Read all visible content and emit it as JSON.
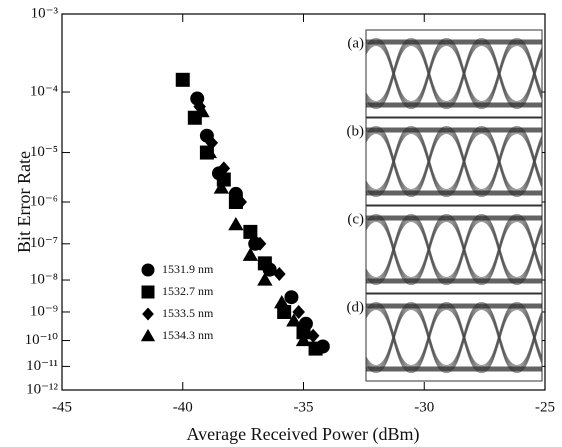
{
  "chart_data": {
    "type": "scatter",
    "xlabel": "Average Received Power (dBm)",
    "ylabel": "Bit Error Rate",
    "xlim": [
      -45,
      -25
    ],
    "xticks": [
      -45,
      -40,
      -35,
      -30,
      -25
    ],
    "ylim": [
      0.001,
      1e-12
    ],
    "yscale": "ber",
    "yticks": [
      {
        "value": 0.001,
        "label": "10⁻³"
      },
      {
        "value": 0.0001,
        "label": "10⁻⁴"
      },
      {
        "value": 1e-05,
        "label": "10⁻⁵"
      },
      {
        "value": 1e-06,
        "label": "10⁻⁶"
      },
      {
        "value": 1e-07,
        "label": "10⁻⁷"
      },
      {
        "value": 1e-08,
        "label": "10⁻⁸"
      },
      {
        "value": 1e-09,
        "label": "10⁻⁹"
      },
      {
        "value": 1e-10,
        "label": "10⁻¹⁰"
      },
      {
        "value": 1e-11,
        "label": "10⁻¹¹"
      },
      {
        "value": 1e-12,
        "label": "10⁻¹²"
      }
    ],
    "legend": "lower left",
    "series": [
      {
        "name": "1531.9 nm",
        "color": "#000000",
        "marker": "circle",
        "x": [
          -39.4,
          -39.0,
          -38.5,
          -37.8,
          -37.0,
          -36.4,
          -35.5,
          -34.9,
          -34.2
        ],
        "values": [
          8e-05,
          2e-05,
          4e-06,
          1.5e-06,
          1e-07,
          2e-08,
          3e-09,
          4e-10,
          6e-11
        ]
      },
      {
        "name": "1532.7 nm",
        "color": "#000000",
        "marker": "square",
        "x": [
          -40.0,
          -39.5,
          -39.0,
          -38.3,
          -37.8,
          -37.2,
          -36.6,
          -35.8,
          -35.0,
          -34.5
        ],
        "values": [
          0.00015,
          4e-05,
          1e-05,
          3e-06,
          1e-06,
          2e-07,
          3e-08,
          1e-09,
          2e-10,
          5e-11
        ]
      },
      {
        "name": "1533.5 nm",
        "color": "#000000",
        "marker": "diamond",
        "x": [
          -39.3,
          -38.8,
          -38.3,
          -37.6,
          -36.8,
          -36.0,
          -35.2,
          -34.6
        ],
        "values": [
          6e-05,
          1.5e-05,
          5e-06,
          1e-06,
          1e-07,
          1.5e-08,
          1e-09,
          1.5e-10
        ]
      },
      {
        "name": "1534.3 nm",
        "color": "#000000",
        "marker": "triangle",
        "x": [
          -39.2,
          -38.9,
          -38.4,
          -37.8,
          -37.2,
          -36.6,
          -35.9,
          -35.4,
          -35.0
        ],
        "values": [
          5e-05,
          1e-05,
          2e-06,
          3e-07,
          5e-08,
          1e-08,
          2e-09,
          5e-10,
          1e-10
        ]
      }
    ],
    "insets": [
      "(a)",
      "(b)",
      "(c)",
      "(d)"
    ]
  }
}
